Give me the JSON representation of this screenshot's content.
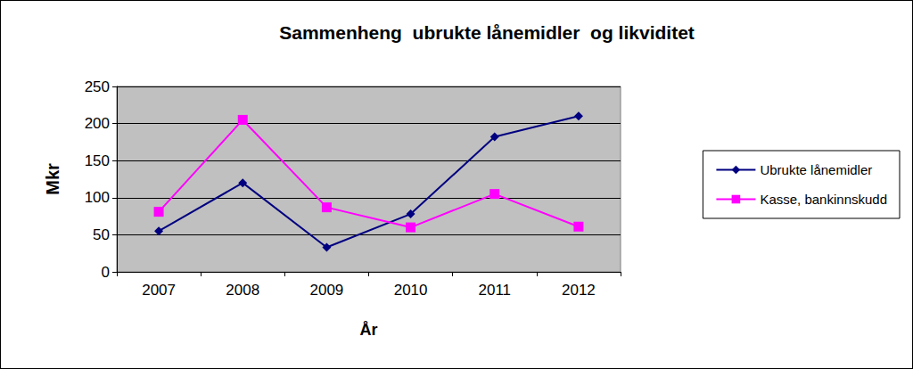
{
  "chart_data": {
    "type": "line",
    "title": "Sammenheng  ubrukte lånemidler  og likviditet",
    "x_label": "År",
    "y_label": "Mkr",
    "categories": [
      "2007",
      "2008",
      "2009",
      "2010",
      "2011",
      "2012"
    ],
    "series": [
      {
        "name": "Ubrukte lånemidler",
        "color": "#000080",
        "marker": "diamond",
        "values": [
          55,
          120,
          33,
          78,
          182,
          210
        ]
      },
      {
        "name": "Kasse, bankinnskudd",
        "color": "#ff00ff",
        "marker": "square",
        "values": [
          81,
          205,
          87,
          60,
          105,
          61
        ]
      }
    ],
    "ylim": [
      0,
      250
    ],
    "yticks": [
      0,
      50,
      100,
      150,
      200,
      250
    ],
    "grid": true,
    "legend": "right"
  }
}
